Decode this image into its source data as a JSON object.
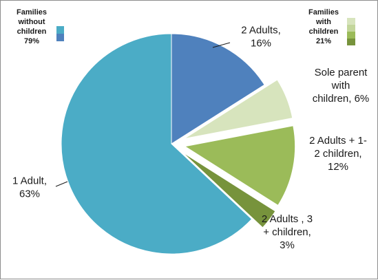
{
  "chart_data": {
    "type": "pie",
    "slices": [
      {
        "label_lines": [
          "2 Adults,",
          "16%"
        ],
        "value": 16,
        "color": "#4f81bd",
        "exploded": false
      },
      {
        "label_lines": [
          "Sole parent",
          "with",
          "children, 6%"
        ],
        "value": 6,
        "color": "#d7e4bd",
        "exploded": true
      },
      {
        "label_lines": [
          "2 Adults + 1-",
          "2 children,",
          "12%"
        ],
        "value": 12,
        "color": "#9bbb59",
        "exploded": true
      },
      {
        "label_lines": [
          "2 Adults , 3",
          "+ children,",
          "3%"
        ],
        "value": 3,
        "color": "#77933c",
        "exploded": true
      },
      {
        "label_lines": [
          "1 Adult,",
          "63%"
        ],
        "value": 63,
        "color": "#4bacc6",
        "exploded": false
      }
    ],
    "legends": [
      {
        "title_lines": [
          "Families",
          "without",
          "children",
          "79%"
        ],
        "swatches": [
          "#4bacc6",
          "#4f81bd"
        ]
      },
      {
        "title_lines": [
          "Families",
          "with",
          "children",
          "21%"
        ],
        "swatches": [
          "#d7e4bd",
          "#c3d69b",
          "#9bbb59",
          "#77933c"
        ]
      }
    ]
  }
}
